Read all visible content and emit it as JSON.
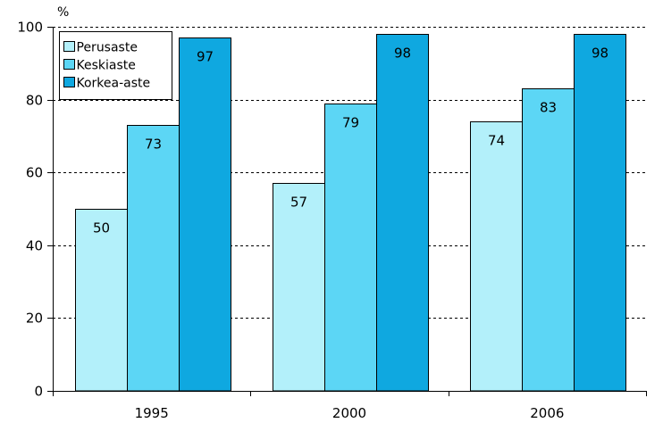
{
  "chart_data": {
    "type": "bar",
    "title": "",
    "xlabel": "",
    "ylabel": "%",
    "ylim": [
      0,
      100
    ],
    "yticks": [
      0,
      20,
      40,
      60,
      80,
      100
    ],
    "categories": [
      "1995",
      "2000",
      "2006"
    ],
    "series": [
      {
        "name": "Perusaste",
        "values": [
          50,
          57,
          74
        ],
        "color": "#b3f0fa"
      },
      {
        "name": "Keskiaste",
        "values": [
          73,
          79,
          83
        ],
        "color": "#5cd6f5"
      },
      {
        "name": "Korkea-aste",
        "values": [
          97,
          98,
          98
        ],
        "color": "#0fa8e0"
      }
    ],
    "grid": true,
    "grid_style": "dashed",
    "legend_position": "top-left",
    "data_labels": true
  }
}
